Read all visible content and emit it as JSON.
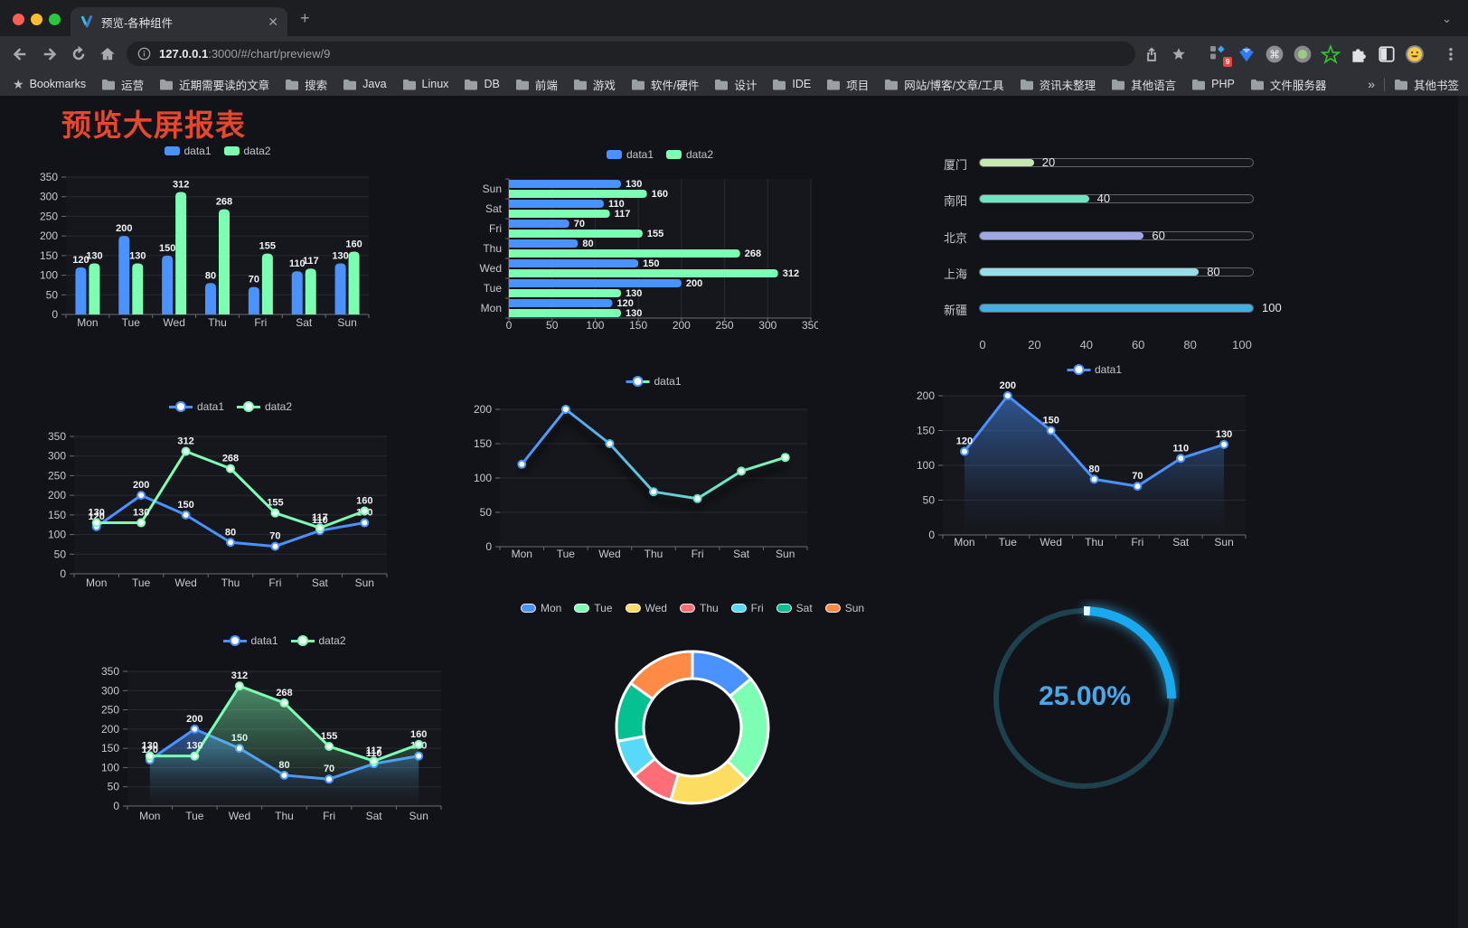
{
  "browser": {
    "tab_title": "预览-各种组件",
    "url_host": "127.0.0.1",
    "url_rest": ":3000/#/chart/preview/9",
    "extensions_badge": "9",
    "bookmarks": {
      "root_label": "Bookmarks",
      "items": [
        "运营",
        "近期需要读的文章",
        "搜索",
        "Java",
        "Linux",
        "DB",
        "前端",
        "游戏",
        "软件/硬件",
        "设计",
        "IDE",
        "项目",
        "网站/博客/文章/工具",
        "资讯未整理",
        "其他语言",
        "PHP",
        "文件服务器"
      ],
      "overflow": "»",
      "other_label": "其他书签"
    }
  },
  "page": {
    "title": "预览大屏报表",
    "title_color": "#e5472f"
  },
  "chart_data": [
    {
      "id": "grouped-bar",
      "type": "bar",
      "categories": [
        "Mon",
        "Tue",
        "Wed",
        "Thu",
        "Fri",
        "Sat",
        "Sun"
      ],
      "series": [
        {
          "name": "data1",
          "color": "#4992ff",
          "values": [
            120,
            200,
            150,
            80,
            70,
            110,
            130
          ]
        },
        {
          "name": "data2",
          "color": "#7cffb2",
          "values": [
            130,
            130,
            312,
            268,
            155,
            117,
            160
          ]
        }
      ],
      "ylim": [
        0,
        350
      ],
      "ytick": 50,
      "legend_position": "top",
      "grid": true,
      "point_labels": true
    },
    {
      "id": "horizontal-bar",
      "type": "bar-horizontal",
      "categories": [
        "Mon",
        "Tue",
        "Wed",
        "Thu",
        "Fri",
        "Sat",
        "Sun"
      ],
      "categories_top_to_bottom": [
        "Sun",
        "Sat",
        "Fri",
        "Thu",
        "Wed",
        "Tue",
        "Mon"
      ],
      "series": [
        {
          "name": "data1",
          "color": "#4992ff",
          "values": [
            120,
            200,
            150,
            80,
            70,
            110,
            130
          ]
        },
        {
          "name": "data2",
          "color": "#7cffb2",
          "values": [
            130,
            130,
            312,
            268,
            155,
            117,
            160
          ]
        }
      ],
      "xlim": [
        0,
        350
      ],
      "xtick": 50,
      "legend_position": "top",
      "grid": true,
      "point_labels": true
    },
    {
      "id": "progress-bars",
      "type": "bar-progress",
      "items": [
        {
          "label": "厦门",
          "value": 20,
          "color": "#c4ebad"
        },
        {
          "label": "南阳",
          "value": 40,
          "color": "#6be6c1"
        },
        {
          "label": "北京",
          "value": 60,
          "color": "#a0a7e6"
        },
        {
          "label": "上海",
          "value": 80,
          "color": "#96dee8"
        },
        {
          "label": "新疆",
          "value": 100,
          "color": "#3fb1e3"
        }
      ],
      "xlim": [
        0,
        100
      ],
      "xticks": [
        0,
        20,
        40,
        60,
        80,
        100
      ]
    },
    {
      "id": "line-dual",
      "type": "line",
      "categories": [
        "Mon",
        "Tue",
        "Wed",
        "Thu",
        "Fri",
        "Sat",
        "Sun"
      ],
      "series": [
        {
          "name": "data1",
          "color": "#4992ff",
          "values": [
            120,
            200,
            150,
            80,
            70,
            110,
            130
          ]
        },
        {
          "name": "data2",
          "color": "#7cffb2",
          "values": [
            130,
            130,
            312,
            268,
            155,
            117,
            160
          ]
        }
      ],
      "ylim": [
        0,
        350
      ],
      "ytick": 50,
      "legend_position": "top",
      "point_labels": true
    },
    {
      "id": "line-gradient",
      "type": "line",
      "categories": [
        "Mon",
        "Tue",
        "Wed",
        "Thu",
        "Fri",
        "Sat",
        "Sun"
      ],
      "series": [
        {
          "name": "data1",
          "gradient": [
            "#4992ff",
            "#7cffb2"
          ],
          "values": [
            120,
            200,
            150,
            80,
            70,
            110,
            130
          ]
        }
      ],
      "ylim": [
        0,
        200
      ],
      "ytick": 50,
      "legend_position": "top",
      "point_labels": false
    },
    {
      "id": "area-single",
      "type": "area",
      "categories": [
        "Mon",
        "Tue",
        "Wed",
        "Thu",
        "Fri",
        "Sat",
        "Sun"
      ],
      "series": [
        {
          "name": "data1",
          "color": "#4992ff",
          "values": [
            120,
            200,
            150,
            80,
            70,
            110,
            130
          ]
        }
      ],
      "ylim": [
        0,
        200
      ],
      "ytick": 50,
      "legend_position": "top",
      "point_labels": true
    },
    {
      "id": "area-dual",
      "type": "area",
      "categories": [
        "Mon",
        "Tue",
        "Wed",
        "Thu",
        "Fri",
        "Sat",
        "Sun"
      ],
      "series": [
        {
          "name": "data1",
          "color": "#4992ff",
          "values": [
            120,
            200,
            150,
            80,
            70,
            110,
            130
          ]
        },
        {
          "name": "data2",
          "color": "#7cffb2",
          "values": [
            130,
            130,
            312,
            268,
            155,
            117,
            160
          ]
        }
      ],
      "ylim": [
        0,
        350
      ],
      "ytick": 50,
      "legend_position": "top",
      "point_labels": true
    },
    {
      "id": "donut",
      "type": "pie",
      "labels": [
        "Mon",
        "Tue",
        "Wed",
        "Thu",
        "Fri",
        "Sat",
        "Sun"
      ],
      "values": [
        120,
        200,
        150,
        80,
        70,
        110,
        130
      ],
      "colors": [
        "#4992ff",
        "#7cffb2",
        "#fddd60",
        "#ff6e76",
        "#58d9f9",
        "#05c091",
        "#ff8a45"
      ],
      "inner_radius_ratio": 0.64,
      "legend_position": "top"
    },
    {
      "id": "gauge",
      "type": "gauge",
      "value": 25,
      "max": 100,
      "display": "25.00%",
      "color": "#18a9f1",
      "track_color": "#1e414e"
    }
  ]
}
